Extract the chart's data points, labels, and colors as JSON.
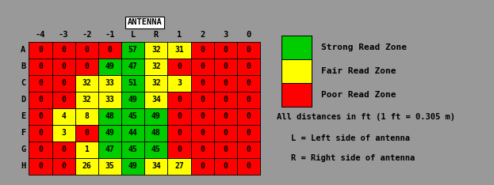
{
  "col_labels": [
    "-4",
    "-3",
    "-2",
    "-1",
    "L",
    "R",
    "1",
    "2",
    "3",
    "0"
  ],
  "row_labels": [
    "A",
    "B",
    "C",
    "D",
    "E",
    "F",
    "G",
    "H"
  ],
  "grid_data": [
    [
      0,
      0,
      0,
      0,
      57,
      32,
      31,
      0,
      0,
      0
    ],
    [
      0,
      0,
      0,
      49,
      47,
      32,
      0,
      0,
      0,
      0
    ],
    [
      0,
      0,
      32,
      33,
      51,
      32,
      3,
      0,
      0,
      0
    ],
    [
      0,
      0,
      32,
      33,
      49,
      34,
      0,
      0,
      0,
      0
    ],
    [
      0,
      4,
      8,
      48,
      45,
      49,
      0,
      0,
      0,
      0
    ],
    [
      0,
      3,
      0,
      49,
      44,
      48,
      0,
      0,
      0,
      0
    ],
    [
      0,
      0,
      1,
      47,
      45,
      45,
      0,
      0,
      0,
      0
    ],
    [
      0,
      0,
      26,
      35,
      49,
      34,
      27,
      0,
      0,
      0
    ]
  ],
  "strong_threshold": 40,
  "fair_threshold": 1,
  "strong_color": "#00cc00",
  "fair_color": "#ffff00",
  "poor_color": "#ff0000",
  "text_color": "#000000",
  "bg_color": "#999999",
  "antenna_label": "ANTENNA",
  "legend_labels": [
    "Strong Read Zone",
    "Fair Read Zone",
    "Poor Read Zone"
  ],
  "note1": "All distances in ft (1 ft = 0.305 m)",
  "note2": "L = Left side of antenna",
  "note3": "R = Right side of antenna",
  "figure_width": 6.23,
  "figure_height": 2.34,
  "dpi": 100
}
